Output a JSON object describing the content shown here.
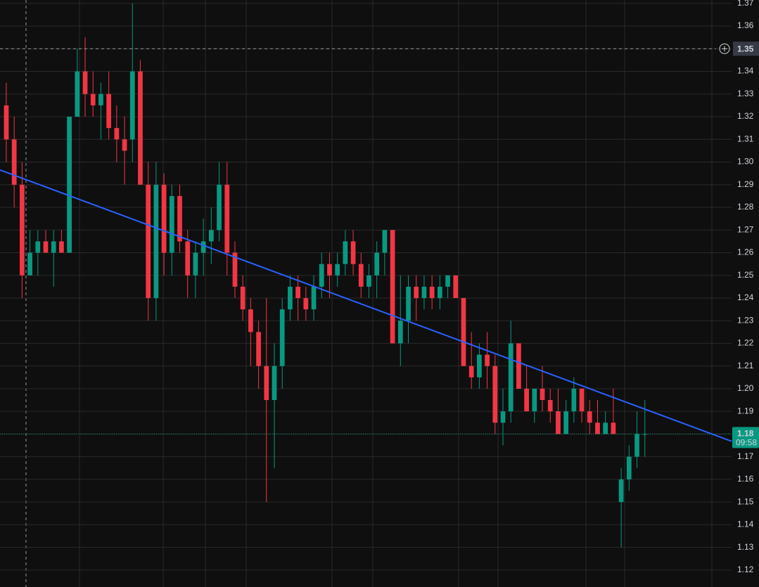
{
  "chart_data": {
    "type": "candlestick",
    "up_color": "#089981",
    "down_color": "#f23645",
    "ylim": [
      1.1125,
      1.3715
    ],
    "yticks": [
      1.12,
      1.13,
      1.14,
      1.15,
      1.16,
      1.17,
      1.18,
      1.19,
      {
        "value": 1.2,
        "label": "1.20"
      },
      1.21,
      1.22,
      1.23,
      1.24,
      1.25,
      1.26,
      1.27,
      1.28,
      1.29,
      {
        "value": 1.3,
        "label": "1.30"
      },
      1.31,
      1.32,
      1.33,
      1.34,
      1.35,
      1.36,
      1.37
    ],
    "grid": true,
    "xlim": [
      -0.8,
      92
    ],
    "candles": [
      [
        1.325,
        1.335,
        1.3,
        1.31
      ],
      [
        1.31,
        1.32,
        1.28,
        1.29
      ],
      [
        1.29,
        1.3,
        1.24,
        1.25
      ],
      [
        1.25,
        1.27,
        1.25,
        1.26
      ],
      [
        1.26,
        1.27,
        1.25,
        1.265
      ],
      [
        1.265,
        1.27,
        1.26,
        1.26
      ],
      [
        1.26,
        1.27,
        1.245,
        1.265
      ],
      [
        1.265,
        1.27,
        1.26,
        1.26
      ],
      [
        1.26,
        1.32,
        1.26,
        1.32
      ],
      [
        1.32,
        1.35,
        1.32,
        1.34
      ],
      [
        1.34,
        1.355,
        1.32,
        1.33
      ],
      [
        1.33,
        1.34,
        1.32,
        1.325
      ],
      [
        1.325,
        1.335,
        1.31,
        1.33
      ],
      [
        1.33,
        1.34,
        1.31,
        1.315
      ],
      [
        1.315,
        1.325,
        1.3,
        1.31
      ],
      [
        1.31,
        1.32,
        1.29,
        1.305
      ],
      [
        1.31,
        1.37,
        1.3,
        1.34
      ],
      [
        1.34,
        1.345,
        1.29,
        1.29
      ],
      [
        1.29,
        1.3,
        1.23,
        1.24
      ],
      [
        1.24,
        1.3,
        1.23,
        1.29
      ],
      [
        1.29,
        1.295,
        1.25,
        1.26
      ],
      [
        1.26,
        1.29,
        1.25,
        1.285
      ],
      [
        1.285,
        1.29,
        1.26,
        1.265
      ],
      [
        1.265,
        1.27,
        1.24,
        1.25
      ],
      [
        1.25,
        1.265,
        1.24,
        1.26
      ],
      [
        1.26,
        1.275,
        1.25,
        1.265
      ],
      [
        1.265,
        1.28,
        1.255,
        1.27
      ],
      [
        1.27,
        1.3,
        1.265,
        1.29
      ],
      [
        1.29,
        1.3,
        1.25,
        1.26
      ],
      [
        1.26,
        1.265,
        1.24,
        1.245
      ],
      [
        1.245,
        1.25,
        1.23,
        1.235
      ],
      [
        1.235,
        1.24,
        1.21,
        1.225
      ],
      [
        1.225,
        1.23,
        1.2,
        1.21
      ],
      [
        1.21,
        1.24,
        1.15,
        1.195
      ],
      [
        1.195,
        1.22,
        1.165,
        1.21
      ],
      [
        1.21,
        1.24,
        1.2,
        1.235
      ],
      [
        1.235,
        1.25,
        1.23,
        1.245
      ],
      [
        1.245,
        1.25,
        1.23,
        1.24
      ],
      [
        1.24,
        1.245,
        1.23,
        1.235
      ],
      [
        1.235,
        1.25,
        1.23,
        1.245
      ],
      [
        1.245,
        1.26,
        1.24,
        1.255
      ],
      [
        1.255,
        1.26,
        1.24,
        1.25
      ],
      [
        1.25,
        1.26,
        1.245,
        1.255
      ],
      [
        1.255,
        1.27,
        1.25,
        1.265
      ],
      [
        1.265,
        1.27,
        1.25,
        1.255
      ],
      [
        1.255,
        1.26,
        1.24,
        1.245
      ],
      [
        1.245,
        1.255,
        1.24,
        1.25
      ],
      [
        1.25,
        1.265,
        1.24,
        1.26
      ],
      [
        1.26,
        1.27,
        1.25,
        1.27
      ],
      [
        1.27,
        1.27,
        1.22,
        1.22
      ],
      [
        1.22,
        1.25,
        1.21,
        1.23
      ],
      [
        1.23,
        1.25,
        1.22,
        1.245
      ],
      [
        1.245,
        1.25,
        1.23,
        1.24
      ],
      [
        1.24,
        1.25,
        1.235,
        1.245
      ],
      [
        1.245,
        1.25,
        1.235,
        1.24
      ],
      [
        1.24,
        1.25,
        1.235,
        1.245
      ],
      [
        1.245,
        1.25,
        1.24,
        1.25
      ],
      [
        1.25,
        1.25,
        1.24,
        1.24
      ],
      [
        1.24,
        1.24,
        1.21,
        1.21
      ],
      [
        1.21,
        1.225,
        1.2,
        1.205
      ],
      [
        1.205,
        1.22,
        1.2,
        1.215
      ],
      [
        1.215,
        1.225,
        1.2,
        1.21
      ],
      [
        1.21,
        1.215,
        1.18,
        1.185
      ],
      [
        1.185,
        1.2,
        1.175,
        1.19
      ],
      [
        1.19,
        1.23,
        1.185,
        1.22
      ],
      [
        1.22,
        1.22,
        1.2,
        1.2
      ],
      [
        1.2,
        1.21,
        1.19,
        1.19
      ],
      [
        1.19,
        1.2,
        1.185,
        1.2
      ],
      [
        1.2,
        1.21,
        1.19,
        1.195
      ],
      [
        1.195,
        1.2,
        1.185,
        1.19
      ],
      [
        1.19,
        1.2,
        1.18,
        1.18
      ],
      [
        1.18,
        1.195,
        1.18,
        1.19
      ],
      [
        1.19,
        1.205,
        1.185,
        1.2
      ],
      [
        1.2,
        1.2,
        1.185,
        1.19
      ],
      [
        1.19,
        1.195,
        1.18,
        1.185
      ],
      [
        1.185,
        1.195,
        1.18,
        1.18
      ],
      [
        1.18,
        1.19,
        1.18,
        1.185
      ],
      [
        1.185,
        1.2,
        1.18,
        1.18
      ],
      [
        1.15,
        1.165,
        1.13,
        1.16
      ],
      [
        1.16,
        1.175,
        1.155,
        1.17
      ],
      [
        1.17,
        1.19,
        1.165,
        1.18
      ],
      [
        1.18,
        1.195,
        1.17,
        1.18
      ]
    ],
    "trendline": {
      "color": "#2962ff",
      "values": [
        1.2965,
        1.1768
      ]
    },
    "crosshair": {
      "value": 1.35
    },
    "last_price": {
      "value": 1.18,
      "countdown": "09:58"
    }
  }
}
